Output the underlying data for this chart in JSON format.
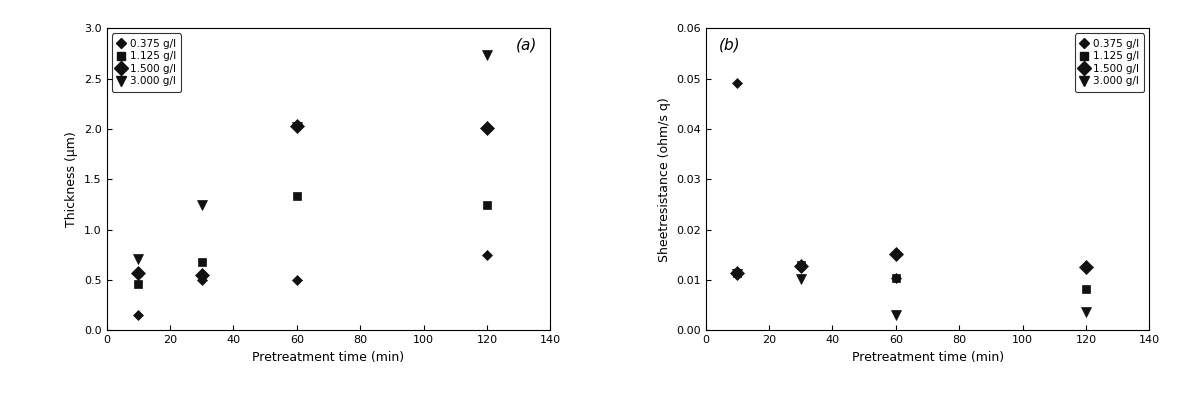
{
  "plot_a": {
    "title": "(a)",
    "xlabel": "Pretreatment time (min)",
    "ylabel": "Thickness (μm)",
    "xlim": [
      0,
      140
    ],
    "ylim": [
      0.0,
      3.0
    ],
    "xticks": [
      0,
      20,
      40,
      60,
      80,
      100,
      120,
      140
    ],
    "yticks": [
      0.0,
      0.5,
      1.0,
      1.5,
      2.0,
      2.5,
      3.0
    ],
    "series": [
      {
        "label": "0.375 g/l",
        "marker": "D",
        "markersize": 5,
        "color": "#111111",
        "x": [
          10,
          30,
          60,
          120
        ],
        "y": [
          0.15,
          0.5,
          0.5,
          0.75
        ]
      },
      {
        "label": "1.125 g/l",
        "marker": "s",
        "markersize": 6,
        "color": "#111111",
        "x": [
          10,
          30,
          60,
          120
        ],
        "y": [
          0.46,
          0.68,
          1.33,
          1.25
        ]
      },
      {
        "label": "1.500 g/l",
        "marker": "D",
        "markersize": 7,
        "color": "#111111",
        "x": [
          10,
          30,
          60,
          120
        ],
        "y": [
          0.57,
          0.55,
          2.03,
          2.01
        ]
      },
      {
        "label": "3.000 g/l",
        "marker": "v",
        "markersize": 7,
        "color": "#111111",
        "x": [
          10,
          30,
          60,
          120
        ],
        "y": [
          0.71,
          1.25,
          2.02,
          2.73
        ]
      }
    ]
  },
  "plot_b": {
    "title": "(b)",
    "xlabel": "Pretreatment time (min)",
    "ylabel": "Sheetresistance (ohm/s q)",
    "xlim": [
      0,
      140
    ],
    "ylim": [
      0.0,
      0.06
    ],
    "xticks": [
      0,
      20,
      40,
      60,
      80,
      100,
      120,
      140
    ],
    "yticks": [
      0.0,
      0.01,
      0.02,
      0.03,
      0.04,
      0.05,
      0.06
    ],
    "series": [
      {
        "label": "0.375 g/l",
        "marker": "D",
        "markersize": 5,
        "color": "#111111",
        "x": [
          10,
          30,
          60,
          120
        ],
        "y": [
          0.0491,
          0.0128,
          0.0105,
          0.0124
        ]
      },
      {
        "label": "1.125 g/l",
        "marker": "s",
        "markersize": 6,
        "color": "#111111",
        "x": [
          10,
          30,
          60,
          120
        ],
        "y": [
          0.0114,
          0.013,
          0.0104,
          0.0082
        ]
      },
      {
        "label": "1.500 g/l",
        "marker": "D",
        "markersize": 7,
        "color": "#111111",
        "x": [
          10,
          30,
          60,
          120
        ],
        "y": [
          0.0115,
          0.0128,
          0.0151,
          0.0126
        ]
      },
      {
        "label": "3.000 g/l",
        "marker": "v",
        "markersize": 7,
        "color": "#111111",
        "x": [
          10,
          30,
          60,
          120
        ],
        "y": [
          0.0113,
          0.0102,
          0.003,
          0.0036
        ]
      }
    ]
  },
  "legend_labels_a": [
    "0.375 g/l",
    "1.125 g/l",
    "1.500 g/l",
    "3.000 g/l"
  ],
  "legend_labels_b": [
    "0.375 g/l",
    "1.125 g/l",
    "1.500 g/l",
    "3.000 g/l"
  ],
  "figure_width": 11.85,
  "figure_height": 4.03,
  "dpi": 100
}
